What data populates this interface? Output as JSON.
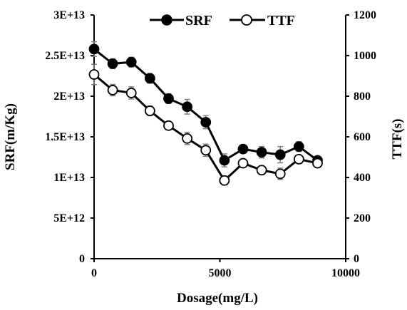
{
  "chart_data": {
    "type": "line",
    "xlabel": "Dosage(mg/L)",
    "ylabel_left": "SRF(m/Kg)",
    "ylabel_right": "TTF(s)",
    "xlim": [
      0,
      10000
    ],
    "ylim_left": [
      0,
      30000000000000.0
    ],
    "ylim_right": [
      0,
      1200
    ],
    "x_ticks": [
      0,
      5000,
      10000
    ],
    "x_tick_labels": [
      "0",
      "5000",
      "10000"
    ],
    "y_left_ticks": [
      0,
      5000000000000.0,
      10000000000000.0,
      15000000000000.0,
      20000000000000.0,
      25000000000000.0,
      30000000000000.0
    ],
    "y_left_tick_labels": [
      "0",
      "5E+12",
      "1E+13",
      "1.5E+13",
      "2E+13",
      "2.5E+13",
      "3E+13"
    ],
    "y_right_ticks": [
      0,
      200,
      400,
      600,
      800,
      1000,
      1200
    ],
    "y_right_tick_labels": [
      "0",
      "200",
      "400",
      "600",
      "800",
      "1000",
      "1200"
    ],
    "grid": false,
    "legend_position": "top-center",
    "series": [
      {
        "name": "SRF",
        "axis": "left",
        "marker": "filled-circle",
        "color": "#000000",
        "x": [
          0,
          740,
          1480,
          2220,
          2960,
          3700,
          4440,
          5180,
          5920,
          6660,
          7400,
          8140,
          8880
        ],
        "y": [
          25800000000000.0,
          24000000000000.0,
          24200000000000.0,
          22200000000000.0,
          19700000000000.0,
          18700000000000.0,
          16800000000000.0,
          12100000000000.0,
          13500000000000.0,
          13100000000000.0,
          12800000000000.0,
          13800000000000.0,
          12100000000000.0
        ],
        "error": [
          900000000000.0,
          600000000000.0,
          600000000000.0,
          600000000000.0,
          600000000000.0,
          900000000000.0,
          800000000000.0,
          800000000000.0,
          500000000000.0,
          700000000000.0,
          1000000000000.0,
          600000000000.0,
          500000000000.0
        ]
      },
      {
        "name": "TTF",
        "axis": "right",
        "marker": "open-circle",
        "color": "#000000",
        "x": [
          0,
          740,
          1480,
          2220,
          2960,
          3700,
          4440,
          5180,
          5920,
          6660,
          7400,
          8140,
          8880
        ],
        "y": [
          907,
          830,
          816,
          728,
          655,
          592,
          534,
          385,
          470,
          436,
          418,
          490,
          470
        ],
        "error": [
          50,
          28,
          30,
          24,
          18,
          30,
          30,
          22,
          16,
          22,
          28,
          18,
          12
        ]
      }
    ]
  }
}
